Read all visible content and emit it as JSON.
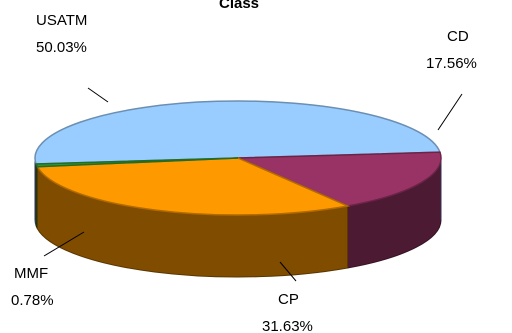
{
  "chart_data": {
    "type": "pie",
    "title": "Class",
    "slices": [
      {
        "label": "USATM",
        "value": 50.03,
        "value_text": "50.03%",
        "color": "#99ccff"
      },
      {
        "label": "CD",
        "value": 17.56,
        "value_text": "17.56%",
        "color": "#993366"
      },
      {
        "label": "CP",
        "value": 31.63,
        "value_text": "31.63%",
        "color": "#ff9900"
      },
      {
        "label": "MMF",
        "value": 0.78,
        "value_text": "0.78%",
        "color": "#339933"
      }
    ],
    "style": "3d",
    "legend": "none"
  }
}
